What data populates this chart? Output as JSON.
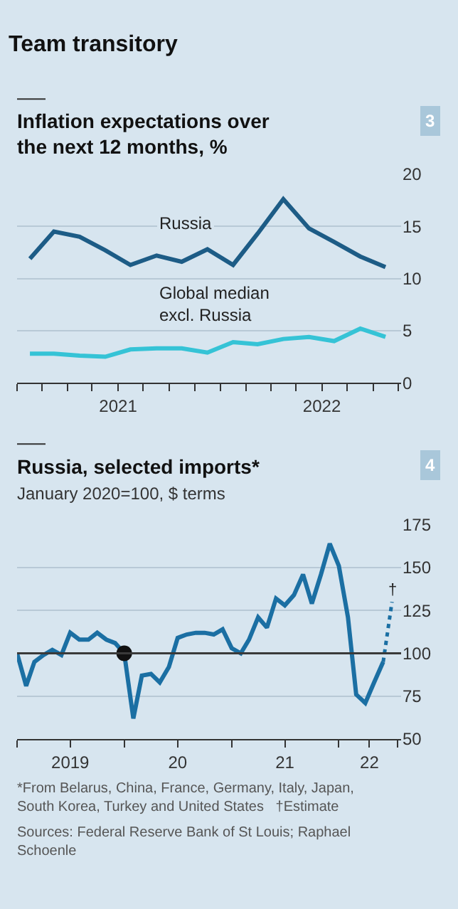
{
  "chart_data": [
    {
      "type": "line",
      "title": "Team transitory",
      "subtitle": "Inflation expectations over the next 12 months, %",
      "annotations": [
        "3"
      ],
      "series": [
        {
          "name": "Russia",
          "color": "#1d5c86",
          "x": [
            "2021-01-24",
            "2021-03-08",
            "2021-04-23",
            "2021-06-08",
            "2021-07-23",
            "2021-09-08",
            "2021-10-23",
            "2021-12-08",
            "2022-01-23",
            "2022-03-08",
            "2022-04-23",
            "2022-06-08",
            "2022-07-23",
            "2022-09-08",
            "2022-10-23"
          ],
          "values": [
            11.9,
            14.5,
            14.0,
            12.7,
            11.3,
            12.2,
            11.6,
            12.8,
            11.3,
            14.3,
            17.6,
            14.8,
            13.5,
            12.1,
            11.1
          ]
        },
        {
          "name": "Global median excl. Russia",
          "color": "#35c3d6",
          "x": [
            "2021-01-24",
            "2021-03-08",
            "2021-04-23",
            "2021-06-08",
            "2021-07-23",
            "2021-09-08",
            "2021-10-23",
            "2021-12-08",
            "2022-01-23",
            "2022-03-08",
            "2022-04-23",
            "2022-06-08",
            "2022-07-23",
            "2022-09-08",
            "2022-10-23"
          ],
          "values": [
            2.8,
            2.8,
            2.6,
            2.5,
            3.2,
            3.3,
            3.3,
            2.9,
            3.9,
            3.7,
            4.2,
            4.4,
            4.0,
            5.2,
            4.4
          ]
        }
      ],
      "xlim": [
        "2021-01-01",
        "2022-11-20"
      ],
      "xticks": [
        {
          "value": "2021-01-01",
          "label": null
        },
        {
          "value": "2021-02-15",
          "label": null
        },
        {
          "value": "2021-04-01",
          "label": null
        },
        {
          "value": "2021-05-15",
          "label": null
        },
        {
          "value": "2021-07-01",
          "label": "2021"
        },
        {
          "value": "2021-08-15",
          "label": null
        },
        {
          "value": "2021-10-01",
          "label": null
        },
        {
          "value": "2021-11-15",
          "label": null
        },
        {
          "value": "2022-01-01",
          "label": null
        },
        {
          "value": "2022-02-15",
          "label": null
        },
        {
          "value": "2022-04-01",
          "label": null
        },
        {
          "value": "2022-05-15",
          "label": null
        },
        {
          "value": "2022-07-01",
          "label": "2022"
        },
        {
          "value": "2022-08-15",
          "label": null
        },
        {
          "value": "2022-10-01",
          "label": null
        },
        {
          "value": "2022-11-15",
          "label": null
        }
      ],
      "ylim": [
        0,
        20
      ],
      "yticks": [
        0,
        5,
        10,
        15,
        20
      ],
      "grid": "y",
      "legend": false,
      "marker": "none",
      "line_style": "solid"
    },
    {
      "type": "line",
      "title": "Russia, selected imports*",
      "subtitle": "January 2020=100, $ terms",
      "annotations": [
        "4",
        "*From Belarus, China, France, Germany, Italy, Japan, South Korea, Turkey and United States   †Estimate",
        "Sources: Federal Reserve Bank of St Louis; Raphael Schoenle",
        {
          "text": "†",
          "x": "2022-07-01",
          "y": 130
        }
      ],
      "series": [
        {
          "color": "#1b6fa3",
          "x": [
            "2019-01-01",
            "2019-02-01",
            "2019-03-01",
            "2019-04-01",
            "2019-05-01",
            "2019-06-01",
            "2019-07-01",
            "2019-08-01",
            "2019-09-01",
            "2019-10-01",
            "2019-11-01",
            "2019-12-01",
            "2020-01-01",
            "2020-02-01",
            "2020-03-01",
            "2020-04-01",
            "2020-05-01",
            "2020-06-01",
            "2020-07-01",
            "2020-08-01",
            "2020-09-01",
            "2020-10-01",
            "2020-11-01",
            "2020-12-01",
            "2021-01-01",
            "2021-02-01",
            "2021-03-01",
            "2021-04-01",
            "2021-05-01",
            "2021-06-01",
            "2021-07-01",
            "2021-08-01",
            "2021-09-01",
            "2021-10-01",
            "2021-11-01",
            "2021-12-01",
            "2022-01-01",
            "2022-02-01",
            "2022-03-01",
            "2022-04-01",
            "2022-05-01",
            "2022-06-01"
          ],
          "values": [
            100,
            81,
            95,
            99,
            102,
            99,
            112,
            108,
            108,
            112,
            108,
            106,
            100,
            62,
            87,
            88,
            83,
            92,
            109,
            111,
            112,
            112,
            111,
            114,
            103,
            100,
            108,
            121,
            115,
            132,
            128,
            134,
            146,
            129,
            146,
            164,
            151,
            121,
            76,
            71,
            83,
            95
          ]
        },
        {
          "color": "#1b6fa3",
          "line_style": "dotted",
          "x": [
            "2022-06-01",
            "2022-07-01"
          ],
          "values": [
            95,
            130
          ]
        },
        {
          "type": "scatter",
          "color": "#111111",
          "marker": "circle",
          "x": [
            "2020-01-01"
          ],
          "values": [
            100
          ]
        }
      ],
      "ref_lines": [
        {
          "axis": "y",
          "value": 100,
          "color": "#3a3a3a"
        }
      ],
      "xlim": [
        "2019-01-01",
        "2022-08-01"
      ],
      "xticks": [
        {
          "value": "2019-01-01",
          "label": null
        },
        {
          "value": "2019-07-01",
          "label": "2019"
        },
        {
          "value": "2020-01-01",
          "label": null
        },
        {
          "value": "2020-07-01",
          "label": "20"
        },
        {
          "value": "2021-01-01",
          "label": null
        },
        {
          "value": "2021-07-01",
          "label": "21"
        },
        {
          "value": "2022-01-01",
          "label": null
        },
        {
          "value": "2022-04-15",
          "label": "22"
        },
        {
          "value": "2022-07-20",
          "label": null
        }
      ],
      "ylim": [
        50,
        175
      ],
      "yticks": [
        50,
        75,
        100,
        125,
        150,
        175
      ],
      "grid": "y",
      "legend": false,
      "marker": "none",
      "line_style": "solid"
    }
  ]
}
